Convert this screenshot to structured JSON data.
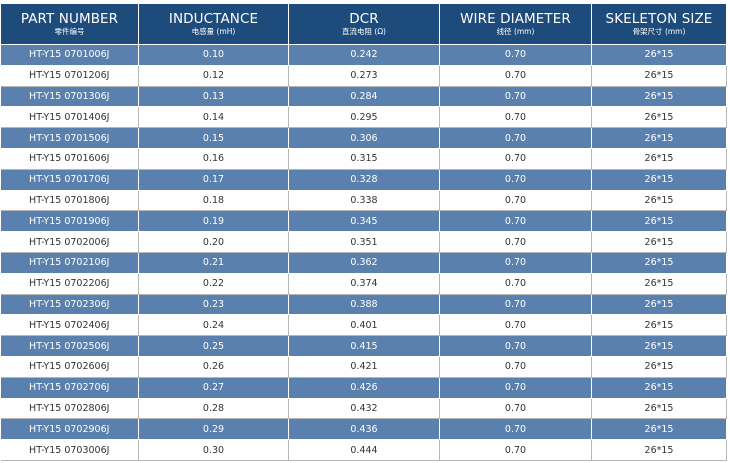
{
  "table": {
    "headers": [
      {
        "en": "PART NUMBER",
        "cn": "零件编号"
      },
      {
        "en": "INDUCTANCE",
        "cn": "电感量 (mH)"
      },
      {
        "en": "DCR",
        "cn": "直流电阻 (Ω)"
      },
      {
        "en": "WIRE DIAMETER",
        "cn": "线径 (mm)"
      },
      {
        "en": "SKELETON SIZE",
        "cn": "骨架尺寸 (mm)"
      }
    ],
    "rows": [
      [
        "HT-Y15 0701006J",
        "0.10",
        "0.242",
        "0.70",
        "26*15"
      ],
      [
        "HT-Y15 0701206J",
        "0.12",
        "0.273",
        "0.70",
        "26*15"
      ],
      [
        "HT-Y15 0701306J",
        "0.13",
        "0.284",
        "0.70",
        "26*15"
      ],
      [
        "HT-Y15 0701406J",
        "0.14",
        "0.295",
        "0.70",
        "26*15"
      ],
      [
        "HT-Y15 0701506J",
        "0.15",
        "0.306",
        "0.70",
        "26*15"
      ],
      [
        "HT-Y15 0701606J",
        "0.16",
        "0.315",
        "0.70",
        "26*15"
      ],
      [
        "HT-Y15 0701706J",
        "0.17",
        "0.328",
        "0.70",
        "26*15"
      ],
      [
        "HT-Y15 0701806J",
        "0.18",
        "0.338",
        "0.70",
        "26*15"
      ],
      [
        "HT-Y15 0701906J",
        "0.19",
        "0.345",
        "0.70",
        "26*15"
      ],
      [
        "HT-Y15 0702006J",
        "0.20",
        "0.351",
        "0.70",
        "26*15"
      ],
      [
        "HT-Y15 0702106J",
        "0.21",
        "0.362",
        "0.70",
        "26*15"
      ],
      [
        "HT-Y15 0702206J",
        "0.22",
        "0.374",
        "0.70",
        "26*15"
      ],
      [
        "HT-Y15 0702306J",
        "0.23",
        "0.388",
        "0.70",
        "26*15"
      ],
      [
        "HT-Y15 0702406J",
        "0.24",
        "0.401",
        "0.70",
        "26*15"
      ],
      [
        "HT-Y15 0702506J",
        "0.25",
        "0.415",
        "0.70",
        "26*15"
      ],
      [
        "HT-Y15 0702606J",
        "0.26",
        "0.421",
        "0.70",
        "26*15"
      ],
      [
        "HT-Y15 0702706J",
        "0.27",
        "0.426",
        "0.70",
        "26*15"
      ],
      [
        "HT-Y15 0702806J",
        "0.28",
        "0.432",
        "0.70",
        "26*15"
      ],
      [
        "HT-Y15 0702906J",
        "0.29",
        "0.436",
        "0.70",
        "26*15"
      ],
      [
        "HT-Y15 0703006J",
        "0.30",
        "0.444",
        "0.70",
        "26*15"
      ]
    ]
  },
  "colors": {
    "header_bg": "#1d4b7b",
    "alt_row_bg": "#5a80ad",
    "plain_row_bg": "#ffffff"
  }
}
